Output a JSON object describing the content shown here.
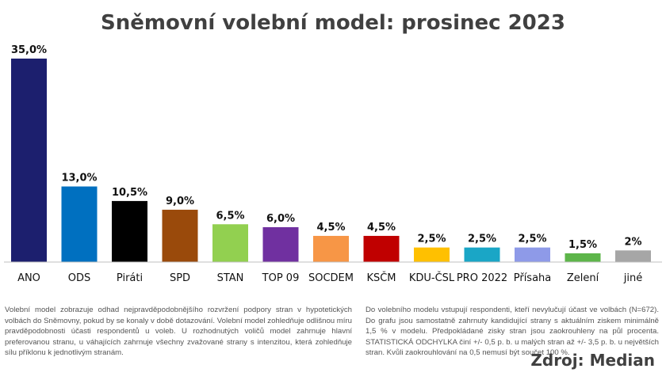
{
  "chart_data": {
    "type": "bar",
    "title": "Sněmovní volební model: prosinec 2023",
    "categories": [
      "ANO",
      "ODS",
      "Piráti",
      "SPD",
      "STAN",
      "TOP 09",
      "SOCDEM",
      "KSČM",
      "KDU-ČSL",
      "PRO 2022",
      "Přísaha",
      "Zelení",
      "jiné"
    ],
    "values": [
      35.0,
      13.0,
      10.5,
      9.0,
      6.5,
      6.0,
      4.5,
      4.5,
      2.5,
      2.5,
      2.5,
      1.5,
      2.0
    ],
    "value_labels": [
      "35,0%",
      "13,0%",
      "10,5%",
      "9,0%",
      "6,5%",
      "6,0%",
      "4,5%",
      "4,5%",
      "2,5%",
      "2,5%",
      "2,5%",
      "1,5%",
      "2%"
    ],
    "colors": [
      "#1c1f6e",
      "#0070c0",
      "#000000",
      "#9a4a0b",
      "#92d050",
      "#7030a0",
      "#f79646",
      "#c00000",
      "#ffc000",
      "#1aa6c6",
      "#8e9ae8",
      "#5db54a",
      "#a6a6a6"
    ],
    "ylim": [
      0,
      35
    ],
    "grid": false,
    "legend": "none"
  },
  "notes": {
    "left": "Volební model zobrazuje odhad nejpravděpodobnějšího rozvržení podpory stran v hypotetických volbách do Sněmovny, pokud by se konaly v době dotazování. Volební model zohledňuje odlišnou míru pravděpodobnosti účasti respondentů u voleb. U rozhodnutých voličů model zahrnuje hlavní preferovanou stranu, u váhajících zahrnuje všechny zvažované strany s intenzitou, která zohledňuje sílu příklonu k jednotlivým stranám.",
    "right": "Do volebního modelu vstupují respondenti, kteří nevylučují účast ve volbách (N=672). Do grafu jsou samostatně zahrnuty kandidující strany s aktuálním ziskem minimálně 1,5 % v modelu. Předpokládané zisky stran jsou zaokrouhleny na půl procenta. STATISTICKÁ ODCHYLKA činí +/- 0,5 p. b. u malých stran až +/- 3,5 p. b. u největších stran. Kvůli zaokrouhlování na 0,5 nemusí být součet 100 %."
  },
  "source": "Zdroj: Median"
}
